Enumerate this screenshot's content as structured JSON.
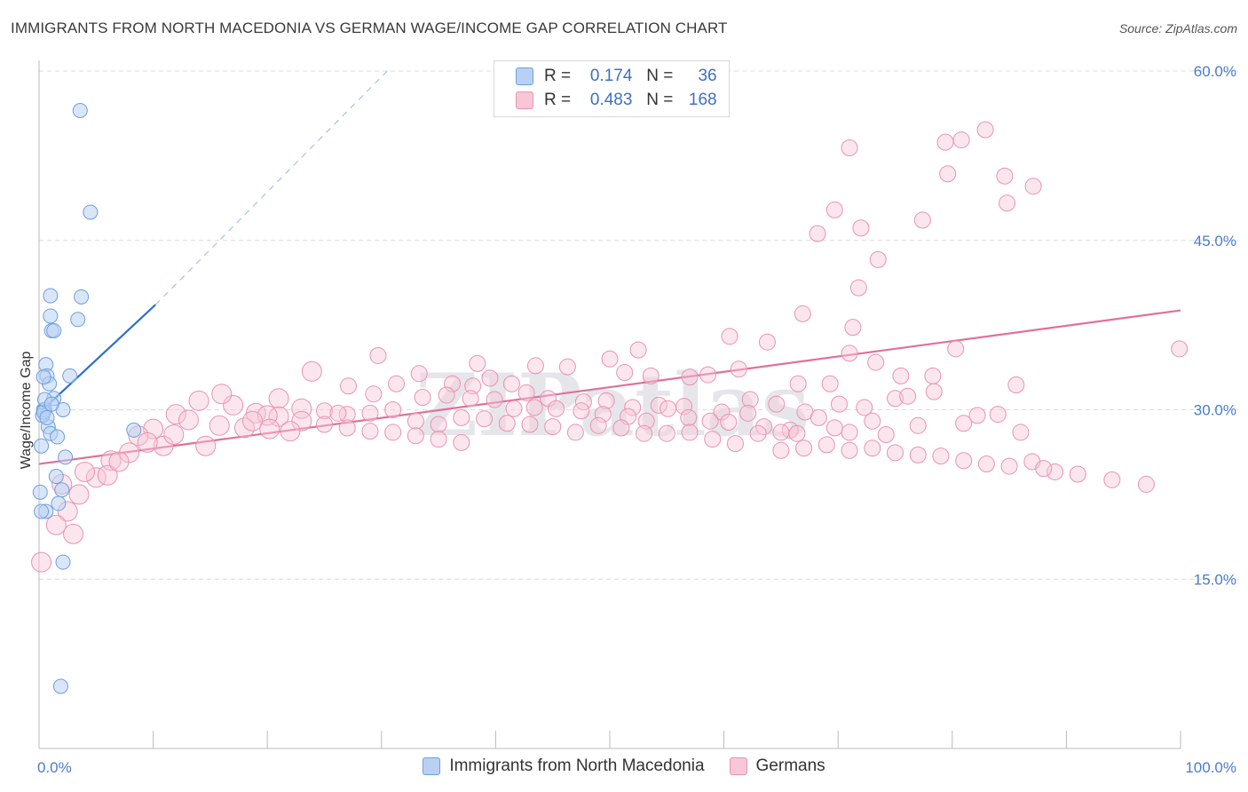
{
  "title": "IMMIGRANTS FROM NORTH MACEDONIA VS GERMAN WAGE/INCOME GAP CORRELATION CHART",
  "source": "Source: ZipAtlas.com",
  "legend": {
    "r_label": "R =",
    "n_label": "N =",
    "series1": {
      "r": "0.174",
      "n": "36"
    },
    "series2": {
      "r": "0.483",
      "n": "168"
    }
  },
  "colors": {
    "blue_fill": "#b8d1f3",
    "blue_stroke": "#6e9ee0",
    "blue_line": "#2f6fd1",
    "pink_fill": "#f8c7d6",
    "pink_stroke": "#e993b0",
    "pink_line": "#e0709a",
    "tick_label": "#4a7cc9",
    "grid": "#dcdcdc"
  },
  "chart_data": {
    "type": "scatter",
    "ylabel": "Wage/Income Gap",
    "xlabel": "",
    "xlim": [
      0,
      100
    ],
    "ylim": [
      0,
      60
    ],
    "x_tick_labels": [
      "0.0%",
      "100.0%"
    ],
    "y_ticks": [
      15,
      30,
      45,
      60
    ],
    "y_tick_labels": [
      "15.0%",
      "30.0%",
      "45.0%",
      "60.0%"
    ],
    "grid": "horizontal dashed",
    "legend_position": "top-center",
    "watermark": "ZIPatlas",
    "series": [
      {
        "name": "Immigrants from North Macedonia",
        "color": "#6e9ee0",
        "trend": {
          "x": [
            0,
            10.2
          ],
          "y": [
            29.7,
            39.3
          ],
          "dashed_extension_to": [
            30.5,
            60.0
          ]
        },
        "points": [
          [
            3.6,
            56.5
          ],
          [
            4.5,
            47.5
          ],
          [
            1.0,
            40.1
          ],
          [
            3.7,
            40.0
          ],
          [
            1.0,
            38.3
          ],
          [
            3.4,
            38.0
          ],
          [
            1.1,
            37.0
          ],
          [
            1.3,
            37.0
          ],
          [
            0.6,
            34.0
          ],
          [
            0.7,
            33.0
          ],
          [
            0.4,
            30.0
          ],
          [
            0.5,
            30.0
          ],
          [
            2.1,
            30.0
          ],
          [
            0.8,
            28.5
          ],
          [
            1.0,
            27.9
          ],
          [
            0.9,
            32.3
          ],
          [
            1.3,
            31.0
          ],
          [
            0.3,
            29.5
          ],
          [
            0.4,
            29.8
          ],
          [
            0.5,
            30.9
          ],
          [
            0.7,
            29.3
          ],
          [
            8.3,
            28.2
          ],
          [
            2.3,
            25.8
          ],
          [
            1.5,
            24.1
          ],
          [
            2.0,
            22.9
          ],
          [
            1.7,
            21.7
          ],
          [
            0.1,
            22.7
          ],
          [
            0.6,
            21.0
          ],
          [
            0.2,
            21.0
          ],
          [
            2.1,
            16.5
          ],
          [
            1.9,
            5.5
          ],
          [
            0.2,
            26.8
          ],
          [
            1.1,
            30.5
          ],
          [
            2.7,
            33.0
          ],
          [
            0.4,
            32.9
          ],
          [
            1.6,
            27.6
          ]
        ]
      },
      {
        "name": "Germans",
        "color": "#e993b0",
        "trend": {
          "x": [
            0,
            100
          ],
          "y": [
            25.2,
            38.8
          ]
        },
        "points": [
          [
            82.9,
            54.8
          ],
          [
            80.8,
            53.9
          ],
          [
            79.4,
            53.7
          ],
          [
            71.0,
            53.2
          ],
          [
            79.6,
            50.9
          ],
          [
            84.6,
            50.7
          ],
          [
            84.8,
            48.3
          ],
          [
            87.1,
            49.8
          ],
          [
            69.7,
            47.7
          ],
          [
            77.4,
            46.8
          ],
          [
            72.0,
            46.1
          ],
          [
            68.2,
            45.6
          ],
          [
            73.5,
            43.3
          ],
          [
            71.8,
            40.8
          ],
          [
            66.9,
            38.5
          ],
          [
            71.3,
            37.3
          ],
          [
            80.3,
            35.4
          ],
          [
            99.9,
            35.4
          ],
          [
            63.8,
            36.0
          ],
          [
            60.5,
            36.5
          ],
          [
            52.5,
            35.3
          ],
          [
            50.0,
            34.5
          ],
          [
            71.0,
            35.0
          ],
          [
            73.3,
            34.2
          ],
          [
            38.4,
            34.1
          ],
          [
            43.5,
            33.9
          ],
          [
            46.3,
            33.8
          ],
          [
            51.3,
            33.3
          ],
          [
            53.6,
            33.0
          ],
          [
            57.0,
            32.9
          ],
          [
            58.6,
            33.1
          ],
          [
            61.3,
            33.6
          ],
          [
            66.5,
            32.3
          ],
          [
            69.3,
            32.3
          ],
          [
            75.5,
            33.0
          ],
          [
            78.3,
            33.0
          ],
          [
            85.6,
            32.2
          ],
          [
            29.7,
            34.8
          ],
          [
            33.3,
            33.2
          ],
          [
            36.2,
            32.3
          ],
          [
            38.0,
            32.1
          ],
          [
            39.5,
            32.8
          ],
          [
            41.4,
            32.3
          ],
          [
            42.7,
            31.5
          ],
          [
            44.6,
            31.0
          ],
          [
            47.7,
            30.7
          ],
          [
            49.7,
            30.8
          ],
          [
            52.0,
            30.2
          ],
          [
            54.3,
            30.4
          ],
          [
            56.5,
            30.3
          ],
          [
            59.8,
            29.8
          ],
          [
            62.3,
            30.9
          ],
          [
            64.6,
            30.5
          ],
          [
            65.8,
            28.2
          ],
          [
            67.1,
            29.8
          ],
          [
            70.1,
            30.5
          ],
          [
            73.0,
            29.0
          ],
          [
            75.0,
            31.0
          ],
          [
            77.0,
            28.6
          ],
          [
            81.0,
            28.8
          ],
          [
            84.0,
            29.6
          ],
          [
            87.0,
            25.4
          ],
          [
            89.0,
            24.5
          ],
          [
            23.9,
            33.4
          ],
          [
            27.1,
            32.1
          ],
          [
            29.3,
            31.4
          ],
          [
            31.3,
            32.3
          ],
          [
            33.6,
            31.1
          ],
          [
            35.7,
            31.3
          ],
          [
            37.8,
            31.0
          ],
          [
            39.9,
            30.9
          ],
          [
            41.6,
            30.1
          ],
          [
            43.4,
            30.2
          ],
          [
            45.3,
            30.1
          ],
          [
            47.5,
            29.9
          ],
          [
            49.4,
            29.6
          ],
          [
            51.6,
            29.4
          ],
          [
            53.2,
            29.0
          ],
          [
            55.1,
            30.1
          ],
          [
            56.9,
            29.3
          ],
          [
            58.8,
            29.0
          ],
          [
            60.4,
            28.9
          ],
          [
            62.1,
            29.7
          ],
          [
            63.5,
            28.5
          ],
          [
            65.0,
            28.0
          ],
          [
            66.4,
            27.9
          ],
          [
            68.3,
            29.3
          ],
          [
            69.7,
            28.4
          ],
          [
            71.0,
            28.0
          ],
          [
            72.3,
            30.2
          ],
          [
            74.2,
            27.8
          ],
          [
            76.1,
            31.2
          ],
          [
            78.4,
            31.6
          ],
          [
            82.2,
            29.5
          ],
          [
            86.0,
            28.0
          ],
          [
            21.0,
            31.0
          ],
          [
            23.0,
            30.1
          ],
          [
            25.0,
            29.9
          ],
          [
            27.0,
            29.6
          ],
          [
            29.0,
            29.7
          ],
          [
            31.0,
            30.0
          ],
          [
            33.0,
            29.0
          ],
          [
            35.0,
            28.7
          ],
          [
            37.0,
            29.3
          ],
          [
            39.0,
            29.2
          ],
          [
            41.0,
            28.8
          ],
          [
            43.0,
            28.7
          ],
          [
            45.0,
            28.5
          ],
          [
            47.0,
            28.0
          ],
          [
            49.0,
            28.6
          ],
          [
            51.0,
            28.4
          ],
          [
            53.0,
            27.9
          ],
          [
            55.0,
            27.9
          ],
          [
            57.0,
            28.0
          ],
          [
            59.0,
            27.4
          ],
          [
            61.0,
            27.0
          ],
          [
            63.0,
            27.9
          ],
          [
            65.0,
            26.4
          ],
          [
            67.0,
            26.6
          ],
          [
            69.0,
            26.9
          ],
          [
            71.0,
            26.4
          ],
          [
            73.0,
            26.6
          ],
          [
            75.0,
            26.2
          ],
          [
            77.0,
            26.0
          ],
          [
            79.0,
            25.9
          ],
          [
            81.0,
            25.5
          ],
          [
            83.0,
            25.2
          ],
          [
            85.0,
            25.0
          ],
          [
            88.0,
            24.8
          ],
          [
            91.0,
            24.3
          ],
          [
            94.0,
            23.8
          ],
          [
            97.0,
            23.4
          ],
          [
            17.0,
            30.4
          ],
          [
            19.0,
            29.7
          ],
          [
            21.0,
            29.4
          ],
          [
            23.0,
            29.0
          ],
          [
            25.0,
            28.7
          ],
          [
            27.0,
            28.4
          ],
          [
            29.0,
            28.1
          ],
          [
            31.0,
            28.0
          ],
          [
            33.0,
            27.7
          ],
          [
            35.0,
            27.4
          ],
          [
            37.0,
            27.1
          ],
          [
            10.0,
            28.3
          ],
          [
            12.0,
            29.6
          ],
          [
            14.0,
            30.8
          ],
          [
            16.0,
            31.4
          ],
          [
            18.0,
            28.4
          ],
          [
            20.0,
            29.5
          ],
          [
            22.0,
            28.1
          ],
          [
            8.7,
            27.7
          ],
          [
            10.9,
            26.8
          ],
          [
            9.5,
            27.1
          ],
          [
            7.9,
            26.2
          ],
          [
            6.3,
            25.5
          ],
          [
            5.0,
            24.0
          ],
          [
            4.0,
            24.5
          ],
          [
            3.5,
            22.5
          ],
          [
            2.5,
            21.0
          ],
          [
            1.5,
            19.8
          ],
          [
            3.0,
            19.0
          ],
          [
            0.2,
            16.5
          ],
          [
            2.0,
            23.4
          ],
          [
            6.0,
            24.2
          ],
          [
            7.0,
            25.4
          ],
          [
            11.8,
            27.8
          ],
          [
            13.1,
            29.1
          ],
          [
            14.6,
            26.8
          ],
          [
            15.8,
            28.6
          ],
          [
            18.7,
            29.0
          ],
          [
            20.2,
            28.3
          ],
          [
            26.2,
            29.7
          ]
        ]
      }
    ]
  },
  "bottom_legend": {
    "item1": "Immigrants from North Macedonia",
    "item2": "Germans"
  }
}
